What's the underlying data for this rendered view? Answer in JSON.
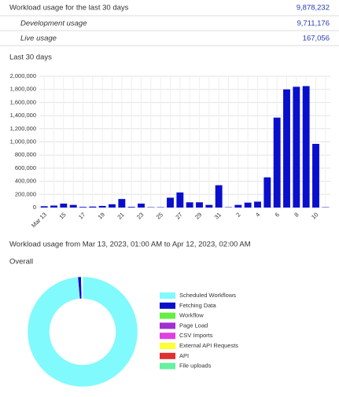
{
  "summary": {
    "title": "Workload usage for the last 30 days",
    "total": "9,878,232",
    "rows": [
      {
        "label": "Development usage",
        "value": "9,711,176"
      },
      {
        "label": "Live usage",
        "value": "167,056"
      }
    ]
  },
  "range_text": "Workload usage from Mar 13, 2023, 01:00 AM to Apr 12, 2023, 02:00 AM",
  "chart_data": [
    {
      "type": "bar",
      "title": "Last 30 days",
      "color": "#0a0fcc",
      "categories": [
        "Mar 13",
        null,
        "15",
        null,
        "17",
        null,
        "19",
        null,
        "21",
        null,
        "23",
        null,
        "25",
        null,
        "27",
        null,
        "29",
        null,
        "31",
        null,
        "2",
        null,
        "4",
        null,
        "6",
        null,
        "8",
        null,
        "10",
        null
      ],
      "values": [
        20000,
        30000,
        60000,
        40000,
        10000,
        15000,
        25000,
        50000,
        130000,
        10000,
        60000,
        5000,
        5000,
        150000,
        230000,
        80000,
        80000,
        40000,
        340000,
        5000,
        40000,
        75000,
        90000,
        460000,
        1370000,
        1800000,
        1840000,
        1850000,
        970000,
        5000
      ],
      "ylim": [
        0,
        2000000
      ],
      "yticks": [
        0,
        {
          "value": 200000,
          "label": "200,000"
        },
        {
          "value": 400000,
          "label": "400,000"
        },
        {
          "value": 600000,
          "label": "600,000"
        },
        {
          "value": 800000,
          "label": "800,000"
        },
        {
          "value": 1000000,
          "label": "1,000,000"
        },
        {
          "value": 1200000,
          "label": "1,200,000"
        },
        {
          "value": 1400000,
          "label": "1,400,000"
        },
        {
          "value": 1600000,
          "label": "1,600,000"
        },
        {
          "value": 1800000,
          "label": "1,800,000"
        },
        {
          "value": 2000000,
          "label": "2,000,000"
        }
      ],
      "grid": true
    },
    {
      "type": "donut",
      "title": "Overall",
      "categories": [
        "Scheduled Workflows",
        "Fetching Data",
        "Workflow",
        "Page Load",
        "CSV Imports",
        "External API Requests",
        "API",
        "File uploads"
      ],
      "values": [
        98.6,
        1.0,
        0.1,
        0.1,
        0.05,
        0.05,
        0.05,
        0.05
      ],
      "colors": [
        "#80fafc",
        "#0a10c9",
        "#66ee44",
        "#a030d0",
        "#e040e0",
        "#ffff33",
        "#e03030",
        "#66f0a0"
      ],
      "legend": "right"
    }
  ]
}
